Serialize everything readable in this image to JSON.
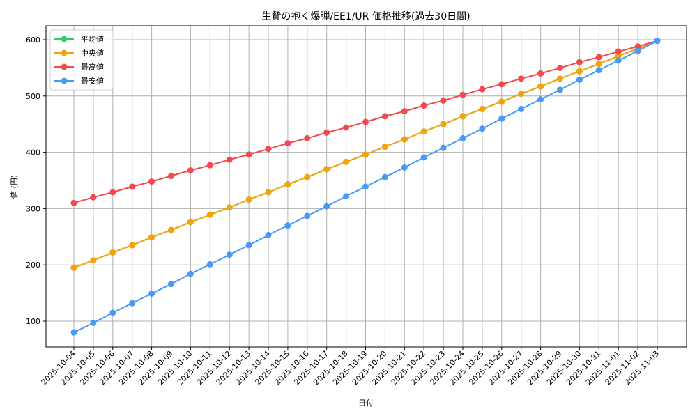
{
  "chart_data": {
    "type": "line",
    "title": "生贄の抱く爆弾/EE1/UR 価格推移(過去30日間)",
    "xlabel": "日付",
    "ylabel": "値 (円)",
    "ylim": [
      53,
      622
    ],
    "yticks": [
      100,
      200,
      300,
      400,
      500,
      600
    ],
    "grid": true,
    "legend_position": "upper left",
    "x": [
      "2025-10-04",
      "2025-10-05",
      "2025-10-06",
      "2025-10-07",
      "2025-10-08",
      "2025-10-09",
      "2025-10-10",
      "2025-10-11",
      "2025-10-12",
      "2025-10-13",
      "2025-10-14",
      "2025-10-15",
      "2025-10-16",
      "2025-10-17",
      "2025-10-18",
      "2025-10-19",
      "2025-10-20",
      "2025-10-21",
      "2025-10-22",
      "2025-10-23",
      "2025-10-24",
      "2025-10-25",
      "2025-10-26",
      "2025-10-27",
      "2025-10-28",
      "2025-10-29",
      "2025-10-30",
      "2025-10-31",
      "2025-11-01",
      "2025-11-02",
      "2025-11-03"
    ],
    "series": [
      {
        "name": "平均値",
        "color": "#2ecc71",
        "values": [
          195,
          208,
          222,
          235,
          249,
          262,
          276,
          289,
          302,
          316,
          329,
          343,
          356,
          370,
          383,
          396,
          410,
          423,
          437,
          450,
          464,
          477,
          490,
          504,
          517,
          531,
          544,
          557,
          571,
          584,
          598
        ]
      },
      {
        "name": "中央値",
        "color": "#f5a30a",
        "values": [
          195,
          208,
          222,
          235,
          249,
          262,
          276,
          289,
          302,
          316,
          329,
          343,
          356,
          370,
          383,
          396,
          410,
          423,
          437,
          450,
          464,
          477,
          490,
          504,
          517,
          531,
          544,
          557,
          571,
          584,
          598
        ]
      },
      {
        "name": "最高値",
        "color": "#f44a4f",
        "values": [
          310,
          320,
          329,
          339,
          348,
          358,
          368,
          377,
          387,
          396,
          406,
          416,
          425,
          435,
          444,
          454,
          464,
          473,
          483,
          492,
          502,
          512,
          521,
          531,
          540,
          550,
          560,
          569,
          579,
          588,
          598
        ]
      },
      {
        "name": "最安値",
        "color": "#4a9af5",
        "values": [
          80,
          97,
          115,
          132,
          149,
          166,
          184,
          201,
          218,
          235,
          253,
          270,
          287,
          304,
          322,
          339,
          356,
          373,
          391,
          408,
          425,
          442,
          460,
          477,
          494,
          511,
          529,
          546,
          563,
          580,
          598
        ]
      }
    ]
  }
}
